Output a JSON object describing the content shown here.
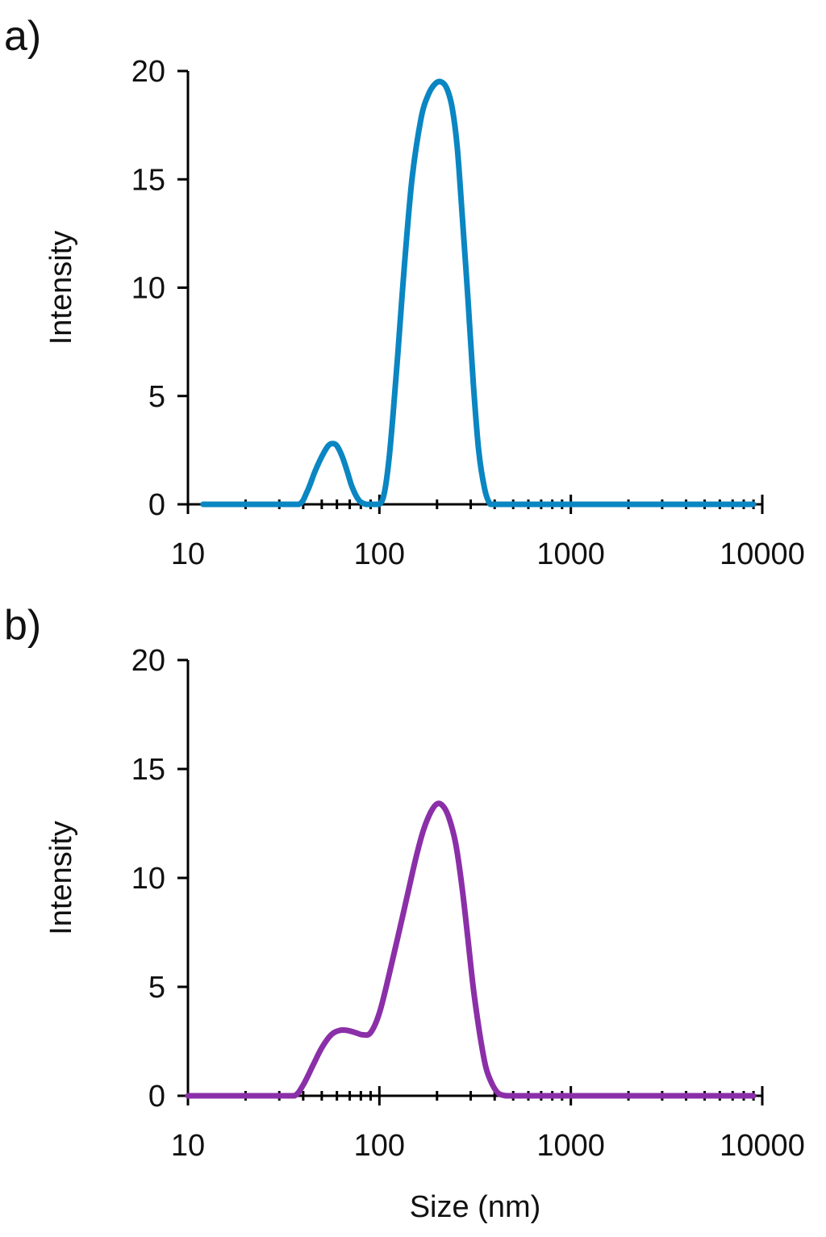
{
  "chart_data": [
    {
      "type": "line",
      "panel_label": "a)",
      "xlabel": "",
      "ylabel": "Intensity",
      "x_scale": "log",
      "xlim": [
        10,
        10000
      ],
      "ylim": [
        0,
        20
      ],
      "x_ticks": [
        10,
        100,
        1000,
        10000
      ],
      "x_tick_labels": [
        "10",
        "100",
        "1000",
        "10000"
      ],
      "y_ticks": [
        0,
        5,
        10,
        15,
        20
      ],
      "y_tick_labels": [
        "0",
        "5",
        "10",
        "15",
        "20"
      ],
      "grid": false,
      "color": "#0a86c2",
      "series": [
        {
          "x": [
            12,
            20,
            30,
            38,
            42,
            46,
            50,
            54,
            57,
            60,
            64,
            68,
            72,
            78,
            85,
            92,
            100,
            106,
            112,
            118,
            125,
            135,
            148,
            165,
            180,
            195,
            210,
            225,
            240,
            255,
            270,
            290,
            310,
            330,
            355,
            380,
            410,
            500,
            1000,
            3000,
            9000
          ],
          "y": [
            0,
            0,
            0,
            0,
            0.6,
            1.5,
            2.2,
            2.7,
            2.8,
            2.7,
            2.2,
            1.5,
            0.8,
            0.2,
            0,
            0,
            0,
            0.5,
            2.0,
            4.2,
            7.0,
            11.0,
            15.0,
            17.8,
            18.9,
            19.4,
            19.5,
            19.2,
            18.3,
            16.5,
            13.5,
            9.5,
            5.5,
            2.5,
            0.7,
            0,
            0,
            0,
            0,
            0,
            0
          ]
        }
      ]
    },
    {
      "type": "line",
      "panel_label": "b)",
      "xlabel": "Size (nm)",
      "ylabel": "Intensity",
      "x_scale": "log",
      "xlim": [
        10,
        10000
      ],
      "ylim": [
        0,
        20
      ],
      "x_ticks": [
        10,
        100,
        1000,
        10000
      ],
      "x_tick_labels": [
        "10",
        "100",
        "1000",
        "10000"
      ],
      "y_ticks": [
        0,
        5,
        10,
        15,
        20
      ],
      "y_tick_labels": [
        "0",
        "5",
        "10",
        "15",
        "20"
      ],
      "grid": false,
      "color": "#8b2fa8",
      "series": [
        {
          "x": [
            10,
            20,
            30,
            36,
            40,
            45,
            50,
            56,
            62,
            68,
            75,
            82,
            90,
            100,
            112,
            125,
            140,
            155,
            170,
            185,
            200,
            215,
            230,
            250,
            270,
            290,
            310,
            335,
            360,
            390,
            420,
            460,
            500,
            1000,
            3000,
            9000
          ],
          "y": [
            0,
            0,
            0,
            0,
            0.5,
            1.4,
            2.2,
            2.8,
            3.0,
            3.0,
            2.9,
            2.8,
            2.9,
            3.8,
            5.5,
            7.3,
            9.2,
            10.9,
            12.2,
            13.0,
            13.4,
            13.3,
            12.8,
            11.6,
            9.6,
            7.2,
            4.9,
            2.8,
            1.3,
            0.5,
            0.1,
            0,
            0,
            0,
            0,
            0
          ]
        }
      ]
    }
  ]
}
